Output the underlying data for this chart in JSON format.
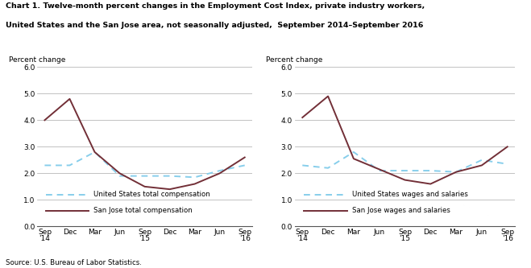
{
  "title_line1": "Chart 1. Twelve-month percent changes in the Employment Cost Index, private industry workers,",
  "title_line2": "United States and the San Jose area, not seasonally adjusted,  September 2014–September 2016",
  "source": "Source: U.S. Bureau of Labor Statistics.",
  "ylabel": "Percent change",
  "x_labels": [
    "Sep\n'14",
    "Dec",
    "Mar",
    "Jun",
    "Sep\n'15",
    "Dec",
    "Mar",
    "Jun",
    "Sep\n'16"
  ],
  "x_positions": [
    0,
    1,
    2,
    3,
    4,
    5,
    6,
    7,
    8
  ],
  "left_us_tc": [
    2.3,
    2.3,
    2.8,
    1.9,
    1.9,
    1.9,
    1.85,
    2.1,
    2.3
  ],
  "left_sj_tc": [
    4.0,
    4.8,
    2.8,
    2.0,
    1.5,
    1.4,
    1.6,
    2.0,
    2.6
  ],
  "right_us_ws": [
    2.3,
    2.2,
    2.8,
    2.1,
    2.1,
    2.1,
    2.05,
    2.5,
    2.35
  ],
  "right_sj_ws": [
    4.1,
    4.9,
    2.55,
    2.15,
    1.75,
    1.6,
    2.05,
    2.3,
    3.0
  ],
  "us_color": "#87CEEB",
  "sj_color": "#722F37",
  "ylim": [
    0.0,
    6.0
  ],
  "yticks": [
    0.0,
    1.0,
    2.0,
    3.0,
    4.0,
    5.0,
    6.0
  ],
  "left_legend": [
    "United States total compensation",
    "San Jose total compensation"
  ],
  "right_legend": [
    "United States wages and salaries",
    "San Jose wages and salaries"
  ],
  "background_color": "#ffffff",
  "grid_color": "#aaaaaa"
}
